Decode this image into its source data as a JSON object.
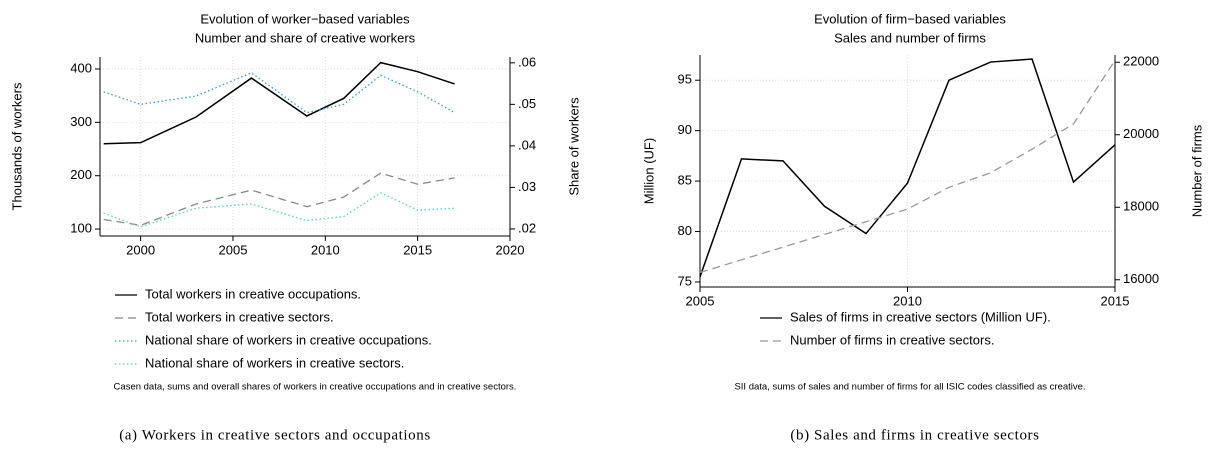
{
  "chart_data": [
    {
      "type": "line",
      "title": "Evolution of worker−based variables",
      "subtitle": "Number and share of creative workers",
      "ylabel": "Thousands of workers",
      "y2label": "Share of workers",
      "x": [
        1998,
        2000,
        2003,
        2006,
        2009,
        2011,
        2013,
        2015,
        2017
      ],
      "xlim": [
        1997.8,
        2020
      ],
      "xticks": [
        2000,
        2005,
        2010,
        2015,
        2020
      ],
      "ylim": [
        87,
        422.5
      ],
      "yticks": [
        100,
        200,
        300,
        400
      ],
      "y2lim": [
        0.0183,
        0.0614
      ],
      "y2ticks": [
        {
          "value": 0.02,
          "label": ".02"
        },
        {
          "value": 0.03,
          "label": ".03"
        },
        {
          "value": 0.04,
          "label": ".04"
        },
        {
          "value": 0.05,
          "label": ".05"
        },
        {
          "value": 0.06,
          "label": ".06"
        }
      ],
      "grid": true,
      "legend": "bottom",
      "series": [
        {
          "name": "Total workers in creative occupations.",
          "color": "#000000",
          "style": "solid",
          "values": [
            260,
            262,
            310,
            383,
            312,
            345,
            412,
            395,
            372
          ]
        },
        {
          "name": "Total workers in creative sectors.",
          "color": "#888888",
          "style": "dashed",
          "values": [
            118,
            107,
            147,
            173,
            142,
            160,
            205,
            184,
            196
          ]
        },
        {
          "name": "National share of workers in creative occupations.",
          "color": "#3399dd",
          "style": "dotted",
          "axis": "y2",
          "values": [
            0.053,
            0.05,
            0.052,
            0.0576,
            0.048,
            0.05,
            0.057,
            0.053,
            0.048
          ]
        },
        {
          "name": "National share of workers in creative sectors.",
          "color": "#55cccc",
          "style": "dotted",
          "axis": "y2",
          "values": [
            0.0238,
            0.0205,
            0.025,
            0.026,
            0.022,
            0.023,
            0.0287,
            0.0245,
            0.025
          ]
        }
      ],
      "note": "Casen data, sums and overall shares of workers in creative occupations and in creative sectors.",
      "caption": "(a) Workers in creative sectors and occupations"
    },
    {
      "type": "line",
      "title": "Evolution of firm−based variables",
      "subtitle": "Sales and number of firms",
      "ylabel": "Million (UF)",
      "y2label": "Number of firms",
      "x": [
        2005,
        2006,
        2007,
        2008,
        2009,
        2010,
        2011,
        2012,
        2013,
        2014,
        2015
      ],
      "xlim": [
        2005,
        2015
      ],
      "xticks": [
        2005,
        2010,
        2015
      ],
      "ylim": [
        74.5,
        97.5
      ],
      "yticks": [
        75,
        80,
        85,
        90,
        95
      ],
      "y2lim": [
        15800,
        22200
      ],
      "y2ticks": [
        16000,
        18000,
        20000,
        22000
      ],
      "grid": true,
      "legend": "bottom",
      "series": [
        {
          "name": "Sales of firms in creative sectors (Million UF).",
          "color": "#000000",
          "style": "solid",
          "values": [
            75.5,
            87.2,
            87,
            82.5,
            79.8,
            84.8,
            95,
            96.8,
            97.1,
            84.9,
            88.6
          ]
        },
        {
          "name": "Number of firms in creative sectors.",
          "color": "#999999",
          "style": "dashed",
          "axis": "y2",
          "values": [
            16200,
            16550,
            16900,
            17250,
            17600,
            17950,
            18550,
            18950,
            19600,
            20300,
            22050
          ]
        }
      ],
      "note": "SII data, sums of sales and number of firms for all ISIC codes classified as creative.",
      "caption": "(b) Sales and firms in creative sectors"
    }
  ]
}
